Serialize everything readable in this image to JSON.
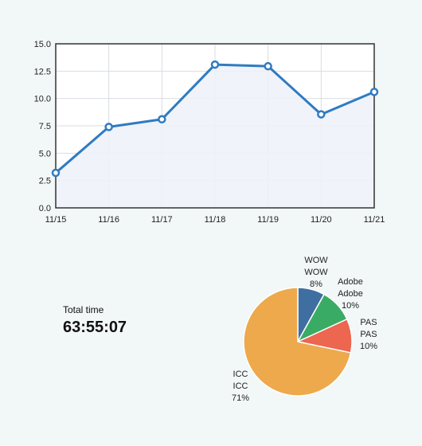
{
  "chart_data": [
    {
      "type": "area",
      "categories": [
        "11/15",
        "11/16",
        "11/17",
        "11/18",
        "11/19",
        "11/20",
        "11/21"
      ],
      "values": [
        3.2,
        7.4,
        8.1,
        13.1,
        12.95,
        8.55,
        10.6
      ],
      "ylim": [
        0,
        15
      ],
      "yticks": [
        "0.0",
        "2.5",
        "5.0",
        "7.5",
        "10.0",
        "12.5",
        "15.0"
      ],
      "ytick_values": [
        0,
        2.5,
        5,
        7.5,
        10,
        12.5,
        15
      ],
      "grid": true,
      "colors": {
        "line": "#2f7bc2",
        "fill": "#eef2f8",
        "grid": "#d8dde2",
        "frame": "#333333",
        "marker_fill": "#ffffff"
      }
    },
    {
      "type": "pie",
      "slices": [
        {
          "label_a": "WOW",
          "label_b": "WOW",
          "percent_label": "8%",
          "value": 8,
          "color": "#3f6fa0"
        },
        {
          "label_a": "Adobe",
          "label_b": "Adobe",
          "percent_label": "10%",
          "value": 10,
          "color": "#3aab64"
        },
        {
          "label_a": "PAS",
          "label_b": "PAS",
          "percent_label": "10%",
          "value": 10,
          "color": "#ec6650"
        },
        {
          "label_a": "ICC",
          "label_b": "ICC",
          "percent_label": "71%",
          "value": 71,
          "color": "#eda94b"
        }
      ]
    }
  ],
  "summary": {
    "label": "Total time",
    "value": "63:55:07"
  }
}
